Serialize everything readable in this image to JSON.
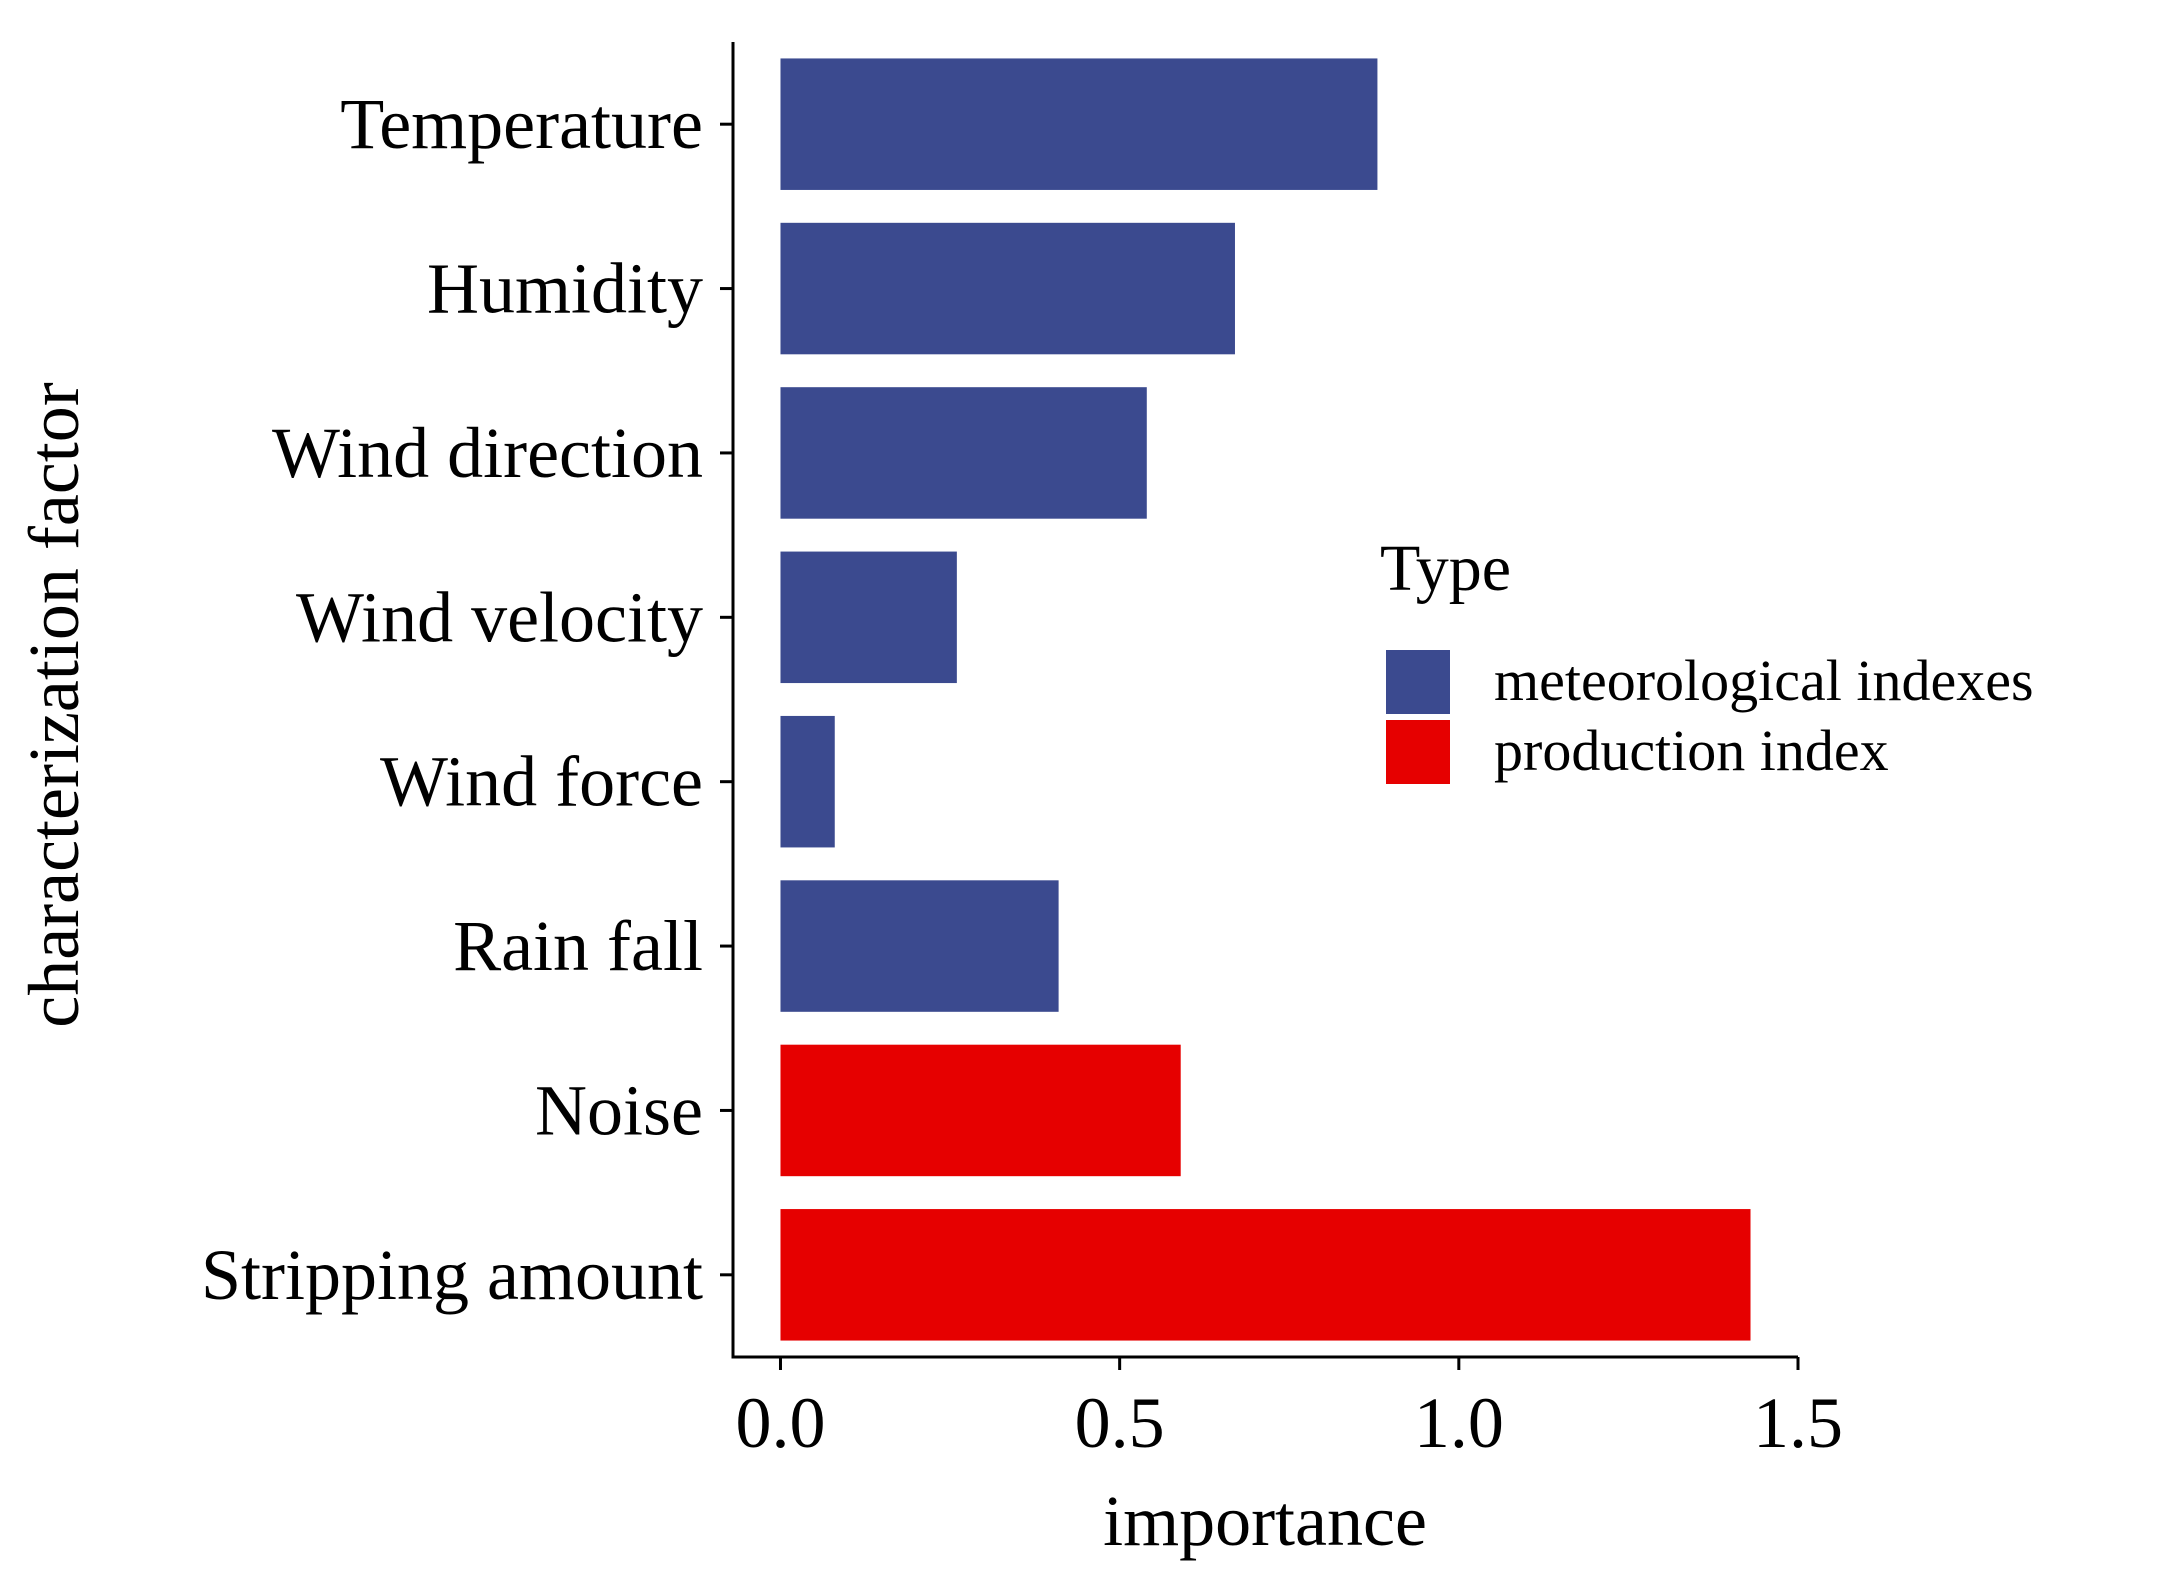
{
  "chart_data": {
    "type": "bar",
    "orientation": "horizontal",
    "title": "",
    "xlabel": "importance",
    "ylabel": "characterization factor",
    "xlim": [
      -0.07,
      1.5
    ],
    "x_ticks": [
      0.0,
      0.5,
      1.0,
      1.5
    ],
    "x_tick_labels": [
      "0.0",
      "0.5",
      "1.0",
      "1.5"
    ],
    "grid": false,
    "categories": [
      "Temperature",
      "Humidity",
      "Wind direction",
      "Wind velocity",
      "Wind force",
      "Rain fall",
      "Noise",
      "Stripping amount"
    ],
    "values": [
      0.88,
      0.67,
      0.54,
      0.26,
      0.08,
      0.41,
      0.59,
      1.43
    ],
    "types": [
      "meteorological indexes",
      "meteorological indexes",
      "meteorological indexes",
      "meteorological indexes",
      "meteorological indexes",
      "meteorological indexes",
      "production index",
      "production index"
    ],
    "legend": {
      "title": "Type",
      "position": "right",
      "entries": [
        {
          "label": "meteorological indexes",
          "color": "#3b4a8f"
        },
        {
          "label": "production index",
          "color": "#e60000"
        }
      ]
    }
  }
}
